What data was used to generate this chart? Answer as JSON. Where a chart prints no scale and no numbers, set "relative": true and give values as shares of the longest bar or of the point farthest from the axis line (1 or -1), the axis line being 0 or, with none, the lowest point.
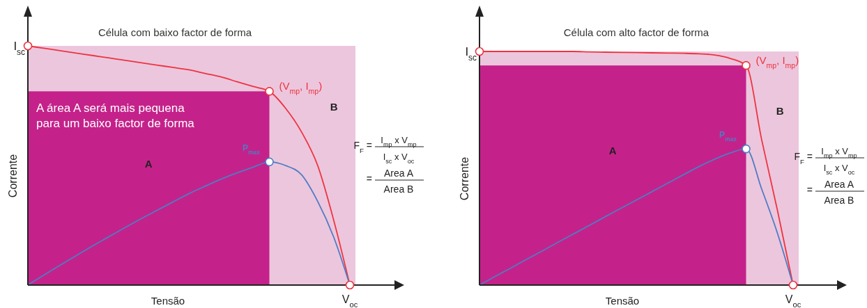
{
  "chart_data": [
    {
      "type": "line",
      "title": "Célula com baixo factor de forma",
      "xlabel": "Tensão",
      "ylabel": "Corrente",
      "relative": true,
      "categories": [
        null,
        null,
        null,
        null,
        null,
        null,
        null,
        null,
        null,
        null,
        null,
        null,
        null,
        null,
        null,
        null,
        null,
        null,
        null,
        null,
        null
      ],
      "series": [
        {
          "color": "#ee3340",
          "values": [
            1.0,
            0.99,
            0.98,
            0.97,
            0.96,
            0.95,
            0.94,
            0.93,
            0.92,
            0.91,
            0.9,
            0.885,
            0.87,
            0.85,
            0.83,
            0.81,
            0.74,
            0.64,
            0.5,
            0.27,
            0
          ]
        },
        {
          "color": "#4f7cc4",
          "values": [
            0,
            0.042,
            0.083,
            0.123,
            0.163,
            0.201,
            0.239,
            0.276,
            0.312,
            0.347,
            0.382,
            0.413,
            0.443,
            0.469,
            0.493,
            0.515,
            0.5,
            0.461,
            0.35,
            0.2,
            0
          ]
        }
      ],
      "annotations": [
        "I$_{sc}$",
        "(V$_{mp}$, I$_{mp}$)",
        "P$_{max}$",
        "A",
        "B",
        "F$_{F}$ =",
        "I$_{mp}$ x V$_{mp}$",
        "I$_{sc}$ x V$_{oc}$",
        "=",
        "Area A",
        "Area B",
        "V$_{oc}$",
        "A área A será mais pequena para um baixo factor de forma"
      ]
    },
    {
      "type": "line",
      "title": "Célula com alto factor de forma",
      "xlabel": "Tensão",
      "ylabel": "Corrente",
      "relative": true,
      "categories": [
        null,
        null,
        null,
        null,
        null,
        null,
        null,
        null,
        null,
        null,
        null,
        null,
        null,
        null,
        null,
        null,
        null,
        null,
        null,
        null,
        null
      ],
      "series": [
        {
          "color": "#ee3340",
          "values": [
            1.0,
            1.0,
            1.0,
            1.0,
            1.0,
            1.0,
            1.0,
            0.998,
            0.997,
            0.996,
            0.995,
            0.994,
            0.993,
            0.992,
            0.99,
            0.985,
            0.97,
            0.94,
            0.62,
            0.32,
            0
          ]
        },
        {
          "color": "#4f7cc4",
          "values": [
            0,
            0.037,
            0.073,
            0.11,
            0.146,
            0.183,
            0.219,
            0.255,
            0.292,
            0.328,
            0.364,
            0.4,
            0.436,
            0.472,
            0.507,
            0.539,
            0.566,
            0.583,
            0.41,
            0.222,
            0
          ]
        }
      ],
      "annotations": [
        "I$_{sc}$",
        "(V$_{mp}$, I$_{mp}$)",
        "P$_{max}$",
        "A",
        "B",
        "F$_{F}$ =",
        "I$_{mp}$ x V$_{mp}$",
        "I$_{sc}$ x V$_{oc}$",
        "=",
        "Area A",
        "Area B",
        "V$_{oc}$"
      ]
    }
  ]
}
